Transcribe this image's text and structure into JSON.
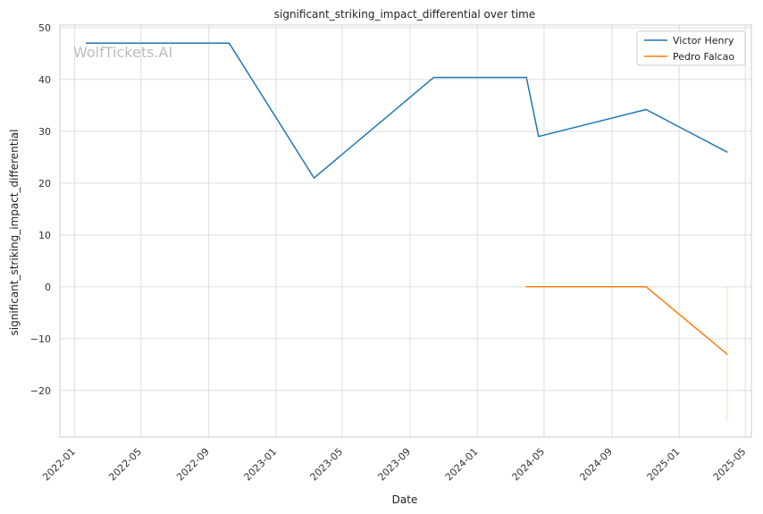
{
  "watermark": "WolfTickets.AI",
  "chart_data": {
    "type": "line",
    "title": "significant_striking_impact_differential over time",
    "xlabel": "Date",
    "ylabel": "significant_striking_impact_differential",
    "x_ticks": [
      "2022-01",
      "2022-05",
      "2022-09",
      "2023-01",
      "2023-05",
      "2023-09",
      "2024-01",
      "2024-05",
      "2024-09",
      "2025-01",
      "2025-05"
    ],
    "y_ticks": [
      -20,
      -10,
      0,
      10,
      20,
      30,
      40,
      50
    ],
    "xlim": [
      "2021-12-05",
      "2025-05-12"
    ],
    "ylim": [
      -29,
      50.5
    ],
    "grid": true,
    "legend_position": "top-right",
    "series": [
      {
        "name": "Victor Henry",
        "color": "#1f77b4",
        "points": [
          {
            "x": "2022-01-22",
            "y": 47
          },
          {
            "x": "2022-10-08",
            "y": 47
          },
          {
            "x": "2023-03-11",
            "y": 21
          },
          {
            "x": "2023-10-14",
            "y": 40.4
          },
          {
            "x": "2024-03-30",
            "y": 40.4
          },
          {
            "x": "2024-04-21",
            "y": 29
          },
          {
            "x": "2024-11-02",
            "y": 34.2
          },
          {
            "x": "2025-03-29",
            "y": 26
          }
        ]
      },
      {
        "name": "Pedro Falcao",
        "color": "#ff7f0e",
        "points": [
          {
            "x": "2024-03-30",
            "y": 0
          },
          {
            "x": "2024-11-02",
            "y": 0
          },
          {
            "x": "2025-03-29",
            "y": -13
          }
        ]
      }
    ],
    "annotations": [
      {
        "type": "faint-vertical-segment",
        "x": "2025-03-29",
        "y_from": 0,
        "y_to": -26,
        "color": "#ff7f0e"
      }
    ]
  }
}
